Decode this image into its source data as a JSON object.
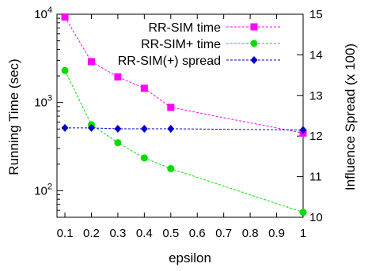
{
  "chart_data": {
    "type": "line",
    "xlabel": "epsilon",
    "ylabel": "Running Time (sec)",
    "y2label": "Influence Spread (x 100)",
    "x_ticks": [
      "0.1",
      "0.2",
      "0.3",
      "0.4",
      "0.5",
      "0.6",
      "0.7",
      "0.8",
      "0.9",
      "1"
    ],
    "y_ticks": [
      {
        "value": 100,
        "base": "10",
        "exp": "2"
      },
      {
        "value": 1000,
        "base": "10",
        "exp": "3"
      },
      {
        "value": 10000,
        "base": "10",
        "exp": "4"
      }
    ],
    "y2_ticks": [
      "10",
      "11",
      "12",
      "13",
      "14",
      "15"
    ],
    "xlim": [
      0.07,
      1.0
    ],
    "ylim": [
      50,
      10000
    ],
    "yscale": "log",
    "y2lim": [
      10,
      15
    ],
    "legend_position": "top-right",
    "series": [
      {
        "name": "RR-SIM time",
        "axis": "left",
        "color": "#ff00ff",
        "marker": "square",
        "x": [
          0.1,
          0.2,
          0.3,
          0.4,
          0.5,
          1.0
        ],
        "y": [
          9300,
          2900,
          1950,
          1450,
          880,
          450
        ]
      },
      {
        "name": "RR-SIM+ time",
        "axis": "left",
        "color": "#00dd00",
        "marker": "circle",
        "x": [
          0.1,
          0.2,
          0.3,
          0.4,
          0.5,
          1.0
        ],
        "y": [
          2300,
          560,
          350,
          235,
          178,
          57
        ]
      },
      {
        "name": "RR-SIM(+) spread",
        "axis": "right",
        "color": "#0000cc",
        "marker": "diamond",
        "x": [
          0.1,
          0.2,
          0.3,
          0.4,
          0.5,
          1.0
        ],
        "y": [
          12.2,
          12.2,
          12.18,
          12.18,
          12.18,
          12.15
        ]
      }
    ]
  }
}
